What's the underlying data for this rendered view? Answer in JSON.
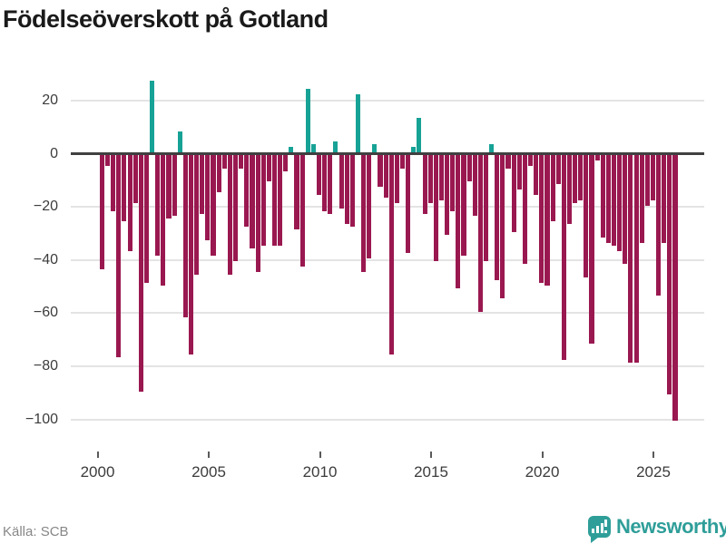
{
  "title": "Födelseöverskott på Gotland",
  "source": "Källa: SCB",
  "brand": {
    "name": "Newsworthy"
  },
  "colors": {
    "positive": "#17a296",
    "negative": "#9a1850",
    "axis": "#404040",
    "grid": "#e4e4e4",
    "brand_teal": "#2f9e99",
    "title_text": "#1a1a1a",
    "tick_text": "#3c3c3c",
    "source_text": "#878787"
  },
  "chart_data": {
    "type": "bar",
    "title": "Födelseöverskott på Gotland",
    "frequency": "quarterly",
    "start_period": "2000-Q1",
    "end_period": "2025-Q4",
    "values": [
      -43,
      -4,
      -21,
      -76,
      -25,
      -36,
      -18,
      -89,
      -48,
      27,
      -38,
      -49,
      -24,
      -23,
      8,
      -61,
      -75,
      -45,
      -22,
      -32,
      -38,
      -14,
      -5,
      -45,
      -40,
      -5,
      -27,
      -35,
      -44,
      -34,
      -10,
      -34,
      -34,
      -6,
      2,
      -28,
      -42,
      24,
      3,
      -15,
      -21,
      -22,
      4,
      -20,
      -26,
      -27,
      22,
      -44,
      -39,
      3,
      -12,
      -16,
      -75,
      -18,
      -5,
      -37,
      2,
      13,
      -22,
      -18,
      -40,
      -17,
      -30,
      -21,
      -50,
      -38,
      -10,
      -23,
      -59,
      -40,
      3,
      -47,
      -54,
      -5,
      -29,
      -13,
      -41,
      -4,
      -15,
      -48,
      -49,
      -25,
      -11,
      -77,
      -26,
      -18,
      -17,
      -46,
      -71,
      -2,
      -31,
      -33,
      -34,
      -36,
      -41,
      -78,
      -78,
      -33,
      -19,
      -17,
      -53,
      -33,
      -90,
      -100
    ],
    "x_tick_years": [
      "2000",
      "2005",
      "2010",
      "2015",
      "2020",
      "2025"
    ],
    "y_tick_labels": [
      "20",
      "0",
      "−20",
      "−40",
      "−60",
      "−80",
      "−100"
    ],
    "y_tick_values": [
      20,
      0,
      -20,
      -40,
      -60,
      -80,
      -100
    ],
    "ylim": [
      -101,
      28
    ],
    "grid": true,
    "legend": false
  }
}
